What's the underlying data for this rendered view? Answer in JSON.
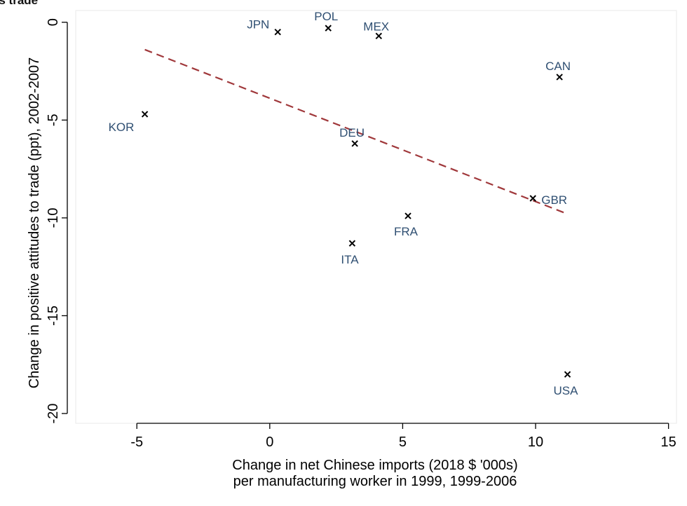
{
  "chart_data": {
    "type": "scatter",
    "title": "ds trade",
    "xlabel": [
      "Change in net Chinese imports (2018 $ '000s)",
      "per manufacturing worker in 1999, 1999-2006"
    ],
    "ylabel": "Change in positive attitudes to trade (ppt), 2002-2007",
    "xlim": [
      -7.3,
      15.3
    ],
    "ylim": [
      -20.5,
      0.6
    ],
    "xticks": [
      -5,
      0,
      5,
      10,
      15
    ],
    "yticks": [
      0,
      -5,
      -10,
      -15,
      -20
    ],
    "grid": false,
    "points": [
      {
        "label": "JPN",
        "x": 0.3,
        "y": -0.5
      },
      {
        "label": "POL",
        "x": 2.2,
        "y": -0.3
      },
      {
        "label": "MEX",
        "x": 4.1,
        "y": -0.7
      },
      {
        "label": "CAN",
        "x": 10.9,
        "y": -2.8
      },
      {
        "label": "KOR",
        "x": -4.7,
        "y": -4.7
      },
      {
        "label": "DEU",
        "x": 3.2,
        "y": -6.2
      },
      {
        "label": "GBR",
        "x": 9.9,
        "y": -9.0
      },
      {
        "label": "FRA",
        "x": 5.2,
        "y": -9.9
      },
      {
        "label": "ITA",
        "x": 3.1,
        "y": -11.3
      },
      {
        "label": "USA",
        "x": 11.2,
        "y": -18.0
      }
    ],
    "fit_line": {
      "x": [
        -4.7,
        11.2
      ],
      "y": [
        -1.4,
        -9.8
      ]
    }
  }
}
